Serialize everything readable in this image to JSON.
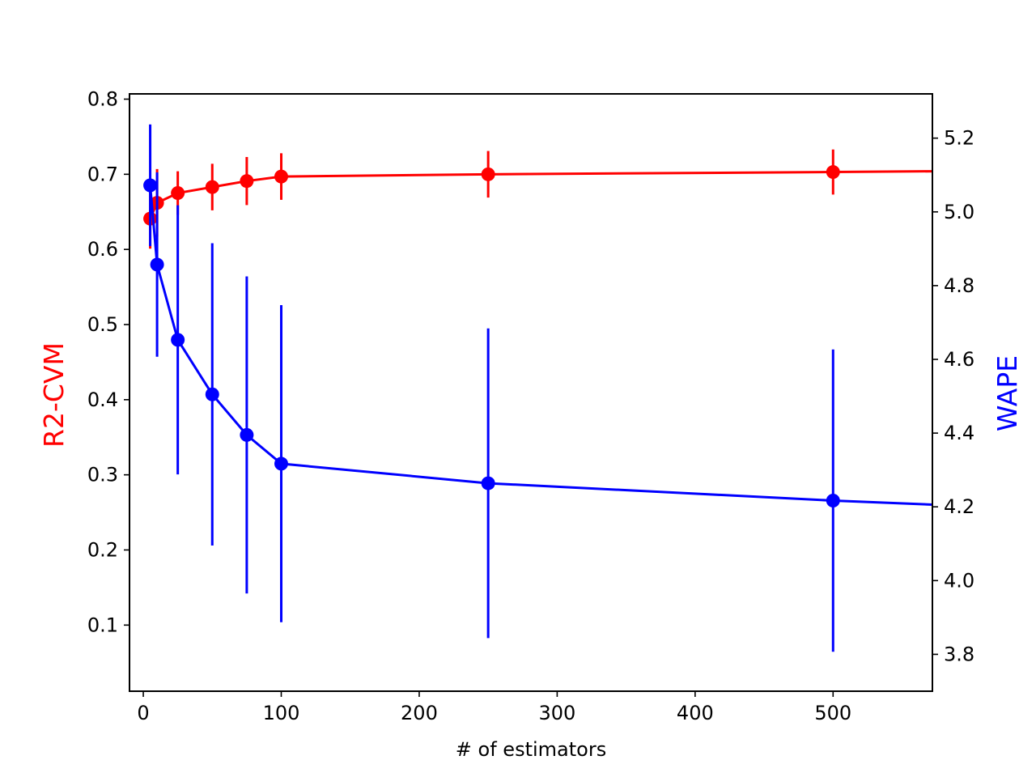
{
  "chart_data": {
    "type": "line",
    "xlabel": "# of estimators",
    "xlim": [
      -10,
      572
    ],
    "xticks": [
      0,
      100,
      200,
      300,
      400,
      500
    ],
    "left_axis": {
      "label": "R2-CVM",
      "color": "#ff0000",
      "ylim": [
        0.012,
        0.807
      ],
      "ticks": [
        "0.1",
        "0.2",
        "0.3",
        "0.4",
        "0.5",
        "0.6",
        "0.7",
        "0.8"
      ]
    },
    "right_axis": {
      "label": "WAPE",
      "color": "#0000ff",
      "ylim": [
        3.7,
        5.32
      ],
      "ticks": [
        "3.8",
        "4.0",
        "4.2",
        "4.4",
        "4.6",
        "4.8",
        "5.0",
        "5.2"
      ]
    },
    "series": [
      {
        "name": "R2-CVM",
        "axis": "left",
        "color": "#ff0000",
        "x": [
          5,
          10,
          25,
          50,
          75,
          100,
          250,
          500,
          572
        ],
        "y": [
          0.641,
          0.662,
          0.675,
          0.683,
          0.691,
          0.697,
          0.7,
          0.703,
          0.704
        ],
        "err": [
          0.04,
          0.045,
          0.029,
          0.031,
          0.032,
          0.031,
          0.031,
          0.03,
          null
        ],
        "markers": [
          true,
          true,
          true,
          true,
          true,
          true,
          true,
          true,
          false
        ]
      },
      {
        "name": "WAPE",
        "axis": "right",
        "color": "#0000ff",
        "x": [
          5,
          10,
          25,
          50,
          75,
          100,
          250,
          500,
          572
        ],
        "y": [
          5.072,
          4.857,
          4.653,
          4.505,
          4.395,
          4.317,
          4.264,
          4.217,
          4.206
        ],
        "err": [
          0.165,
          0.25,
          0.365,
          0.41,
          0.43,
          0.43,
          0.42,
          0.41,
          null
        ],
        "markers": [
          true,
          true,
          true,
          true,
          true,
          true,
          true,
          true,
          false
        ]
      }
    ]
  }
}
